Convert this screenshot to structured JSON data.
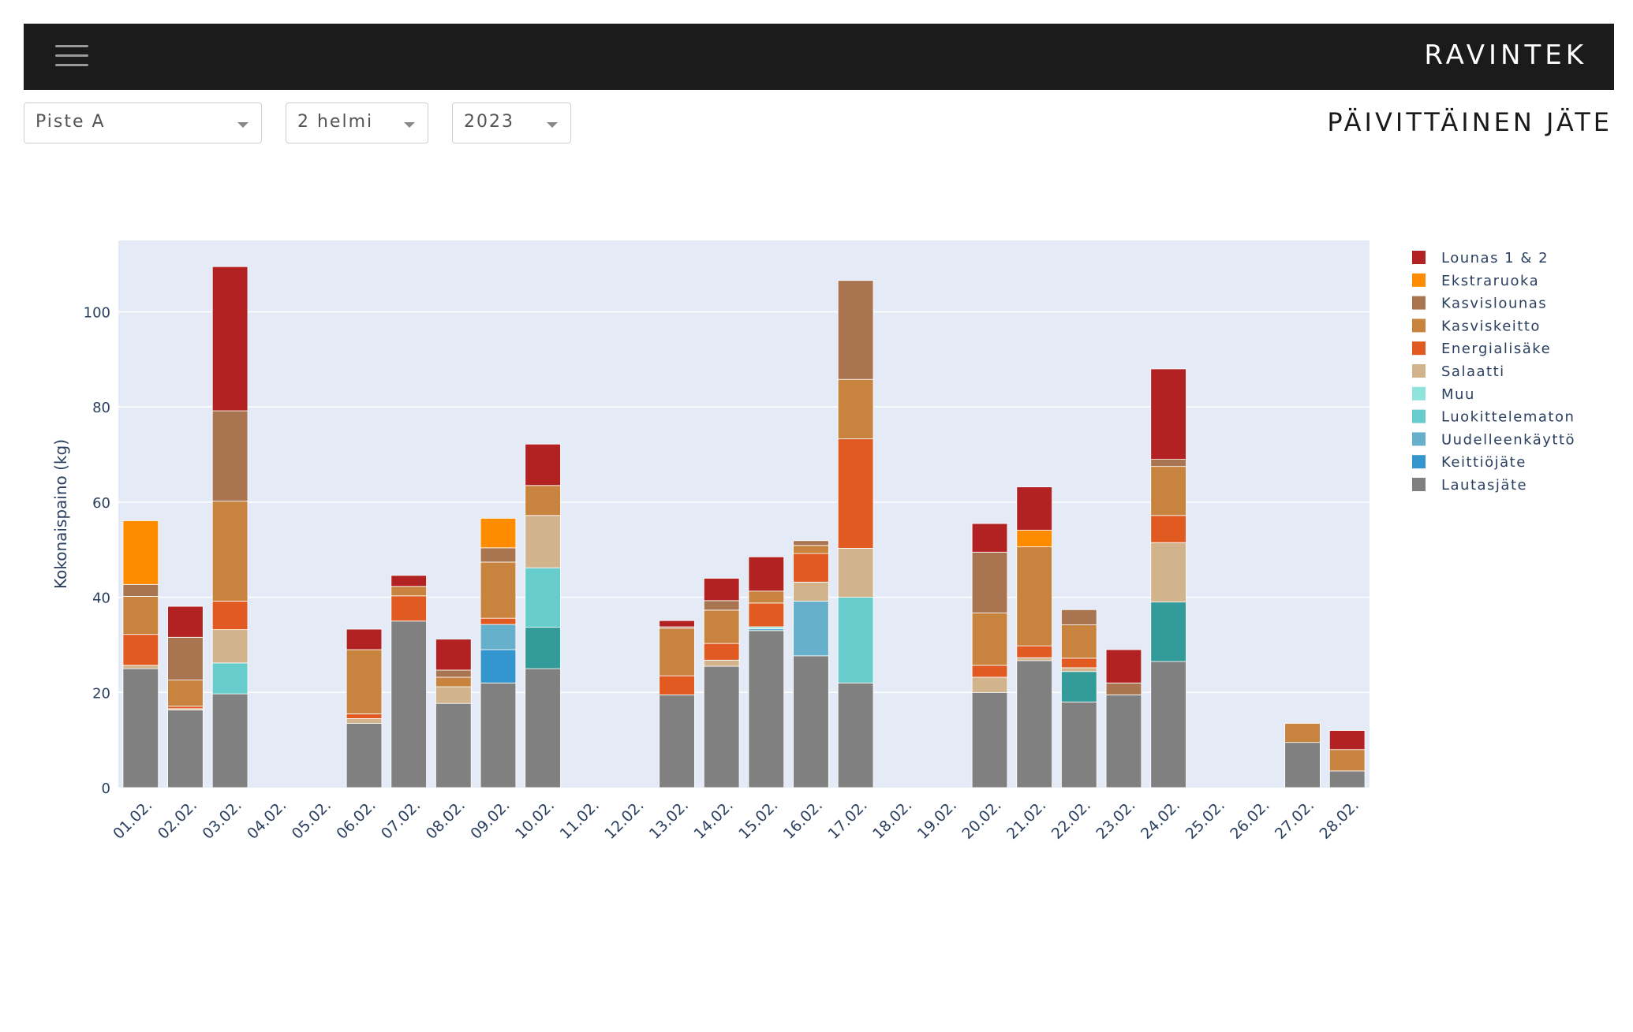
{
  "header": {
    "brand": "RAVINTEK",
    "menu_icon": "hamburger-menu-icon"
  },
  "filters": {
    "location": "Piste A",
    "month": "2 helmi",
    "year": "2023"
  },
  "page_title": "PÄIVITTÄINEN JÄTE",
  "colors": {
    "Lounas 1 & 2": "#b22222",
    "Ekstraruoka": "#ff8c00",
    "Kasvislounas": "#a87550",
    "Kasviskeitto": "#c8843f",
    "Energialisäke": "#e05a22",
    "Salaatti": "#d2b48c",
    "Muu": "#8fe3dd",
    "Luokittelematon": "#66cdcc",
    "Uudelleenkäyttö": "#66b0cc",
    "Keittiöjäte": "#3596cf",
    "Lautasjäte": "#808080",
    "Keittiöjäte2": "#339b99"
  },
  "chart_data": {
    "type": "bar",
    "stacked": true,
    "ylabel": "Kokonaispaino (kg)",
    "ylim": [
      0,
      115
    ],
    "yticks": [
      0,
      20,
      40,
      60,
      80,
      100
    ],
    "grid": true,
    "legend_position": "right",
    "categories": [
      "01.02.",
      "02.02.",
      "03.02.",
      "04.02.",
      "05.02.",
      "06.02.",
      "07.02.",
      "08.02.",
      "09.02.",
      "10.02.",
      "11.02.",
      "12.02.",
      "13.02.",
      "14.02.",
      "15.02.",
      "16.02.",
      "17.02.",
      "18.02.",
      "19.02.",
      "20.02.",
      "21.02.",
      "22.02.",
      "23.02.",
      "24.02.",
      "25.02.",
      "26.02.",
      "27.02.",
      "28.02."
    ],
    "legend": [
      "Lounas 1 & 2",
      "Ekstraruoka",
      "Kasvislounas",
      "Kasviskeitto",
      "Energialisäke",
      "Salaatti",
      "Muu",
      "Luokittelematon",
      "Uudelleenkäyttö",
      "Keittiöjäte",
      "Lautasjäte"
    ],
    "series": [
      {
        "name": "Lautasjäte",
        "color": "#808080",
        "values": [
          25,
          16.3,
          19.7,
          0,
          0,
          13.5,
          35,
          17.7,
          22,
          25,
          0,
          0,
          19.5,
          25.5,
          33,
          27.7,
          22,
          0,
          0,
          20,
          26.7,
          18,
          19.5,
          26.5,
          0,
          0,
          9.5,
          3.5
        ]
      },
      {
        "name": "Keittiöjäte",
        "color": "#3596cf",
        "values": [
          0,
          0,
          0,
          0,
          0,
          0,
          0,
          0,
          7,
          0,
          0,
          0,
          0,
          0,
          0,
          0,
          0,
          0,
          0,
          0,
          0,
          0,
          0,
          0,
          0,
          0,
          0,
          0
        ]
      },
      {
        "name": "Keittiöjäte",
        "color": "#339b99",
        "values": [
          0,
          0,
          0,
          0,
          0,
          0,
          0,
          0,
          0,
          8.7,
          0,
          0,
          0,
          0,
          0,
          0,
          0,
          0,
          0,
          0,
          0,
          6.4,
          0,
          12.5,
          0,
          0,
          0,
          0
        ]
      },
      {
        "name": "Uudelleenkäyttö",
        "color": "#66b0cc",
        "values": [
          0,
          0,
          0,
          0,
          0,
          0,
          0,
          0,
          5.3,
          0,
          0,
          0,
          0,
          0,
          0.4,
          11.5,
          0,
          0,
          0,
          0,
          0,
          0,
          0,
          0,
          0,
          0,
          0,
          0
        ]
      },
      {
        "name": "Luokittelematon",
        "color": "#66cdcc",
        "values": [
          0,
          0,
          6.5,
          0,
          0,
          0,
          0,
          0,
          0,
          12.5,
          0,
          0,
          0,
          0,
          0,
          0,
          18,
          0,
          0,
          0,
          0,
          0,
          0,
          0,
          0,
          0,
          0,
          0
        ]
      },
      {
        "name": "Muu",
        "color": "#8fe3dd",
        "values": [
          0,
          0,
          0,
          0,
          0,
          0,
          0,
          0,
          0,
          0,
          0,
          0,
          0,
          0,
          0.4,
          0,
          0,
          0,
          0,
          0,
          0,
          0,
          0,
          0,
          0,
          0,
          0,
          0
        ]
      },
      {
        "name": "Salaatti",
        "color": "#d2b48c",
        "values": [
          0.7,
          0.3,
          7,
          0,
          0,
          1,
          0,
          3.5,
          0,
          11,
          0,
          0,
          0,
          1.3,
          0,
          4,
          10.3,
          0,
          0,
          3.2,
          0.6,
          0.8,
          0,
          12.5,
          0,
          0,
          0,
          0
        ]
      },
      {
        "name": "Energialisäke",
        "color": "#e05a22",
        "values": [
          6.5,
          0.5,
          6,
          0,
          0,
          1,
          5.3,
          0,
          1.3,
          0,
          0,
          0,
          4,
          3.5,
          5,
          6,
          23,
          0,
          0,
          2.5,
          2.5,
          2,
          0,
          5.7,
          0,
          0,
          0,
          0
        ]
      },
      {
        "name": "Kasviskeitto",
        "color": "#c8843f",
        "values": [
          8,
          5.5,
          21,
          0,
          0,
          13.5,
          2,
          2,
          11.8,
          6.3,
          0,
          0,
          10,
          7,
          2.5,
          1.7,
          12.5,
          0,
          0,
          11,
          20.8,
          7,
          0,
          10.3,
          0,
          0,
          4,
          4.5
        ]
      },
      {
        "name": "Kasvislounas",
        "color": "#a87550",
        "values": [
          2.5,
          9,
          19,
          0,
          0,
          0,
          0,
          1.5,
          3,
          0,
          0,
          0,
          0.3,
          2,
          0,
          1,
          20.8,
          0,
          0,
          12.8,
          0,
          3.2,
          2.5,
          1.5,
          0,
          0,
          0,
          0
        ]
      },
      {
        "name": "Ekstraruoka",
        "color": "#ff8c00",
        "values": [
          13.4,
          0,
          0,
          0,
          0,
          0,
          0,
          0,
          6.2,
          0,
          0,
          0,
          0,
          0,
          0,
          0,
          0,
          0,
          0,
          0,
          3.5,
          0,
          0,
          0,
          0,
          0,
          0,
          0
        ]
      },
      {
        "name": "Lounas 1 & 2",
        "color": "#b22222",
        "values": [
          0,
          6.5,
          30.3,
          0,
          0,
          4.3,
          2.3,
          6.5,
          0,
          8.7,
          0,
          0,
          1.3,
          4.7,
          7.2,
          0,
          0,
          0,
          0,
          6,
          9.1,
          0,
          7,
          19,
          0,
          0,
          0,
          4
        ]
      }
    ]
  }
}
